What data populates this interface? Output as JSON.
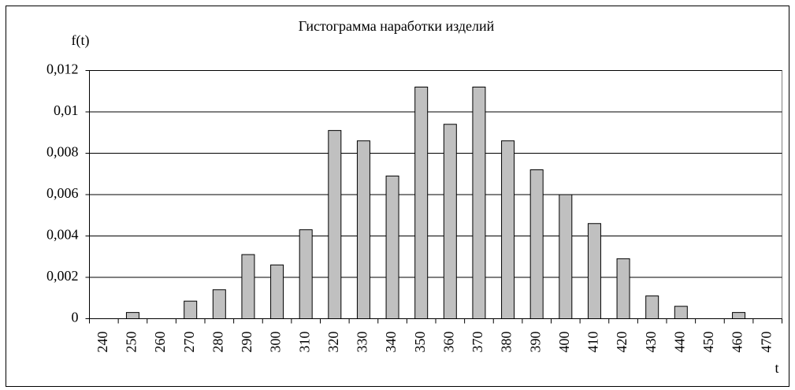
{
  "chart_data": {
    "type": "bar",
    "title": "Гистограмма наработки изделий",
    "y_label": "f(t)",
    "x_label": "t",
    "categories": [
      "240",
      "250",
      "260",
      "270",
      "280",
      "290",
      "300",
      "310",
      "320",
      "330",
      "340",
      "350",
      "360",
      "370",
      "380",
      "390",
      "400",
      "410",
      "420",
      "430",
      "440",
      "450",
      "460",
      "470"
    ],
    "values": [
      0,
      0.0003,
      0,
      0.00085,
      0.0014,
      0.0031,
      0.0026,
      0.0043,
      0.0091,
      0.0086,
      0.0069,
      0.0112,
      0.0094,
      0.0112,
      0.0086,
      0.0072,
      0.006,
      0.0046,
      0.0029,
      0.0011,
      0.0006,
      0,
      0.0003,
      0
    ],
    "color": "#c0c0c0",
    "ylim": [
      0,
      0.012
    ],
    "yticks": [
      0,
      {
        "value": 0.002,
        "label": "0,002"
      },
      {
        "value": 0.004,
        "label": "0,004"
      },
      {
        "value": 0.006,
        "label": "0,006"
      },
      {
        "value": 0.008,
        "label": "0,008"
      },
      {
        "value": 0.01,
        "label": "0,01"
      },
      {
        "value": 0.012,
        "label": "0,012"
      }
    ],
    "grid": true
  }
}
